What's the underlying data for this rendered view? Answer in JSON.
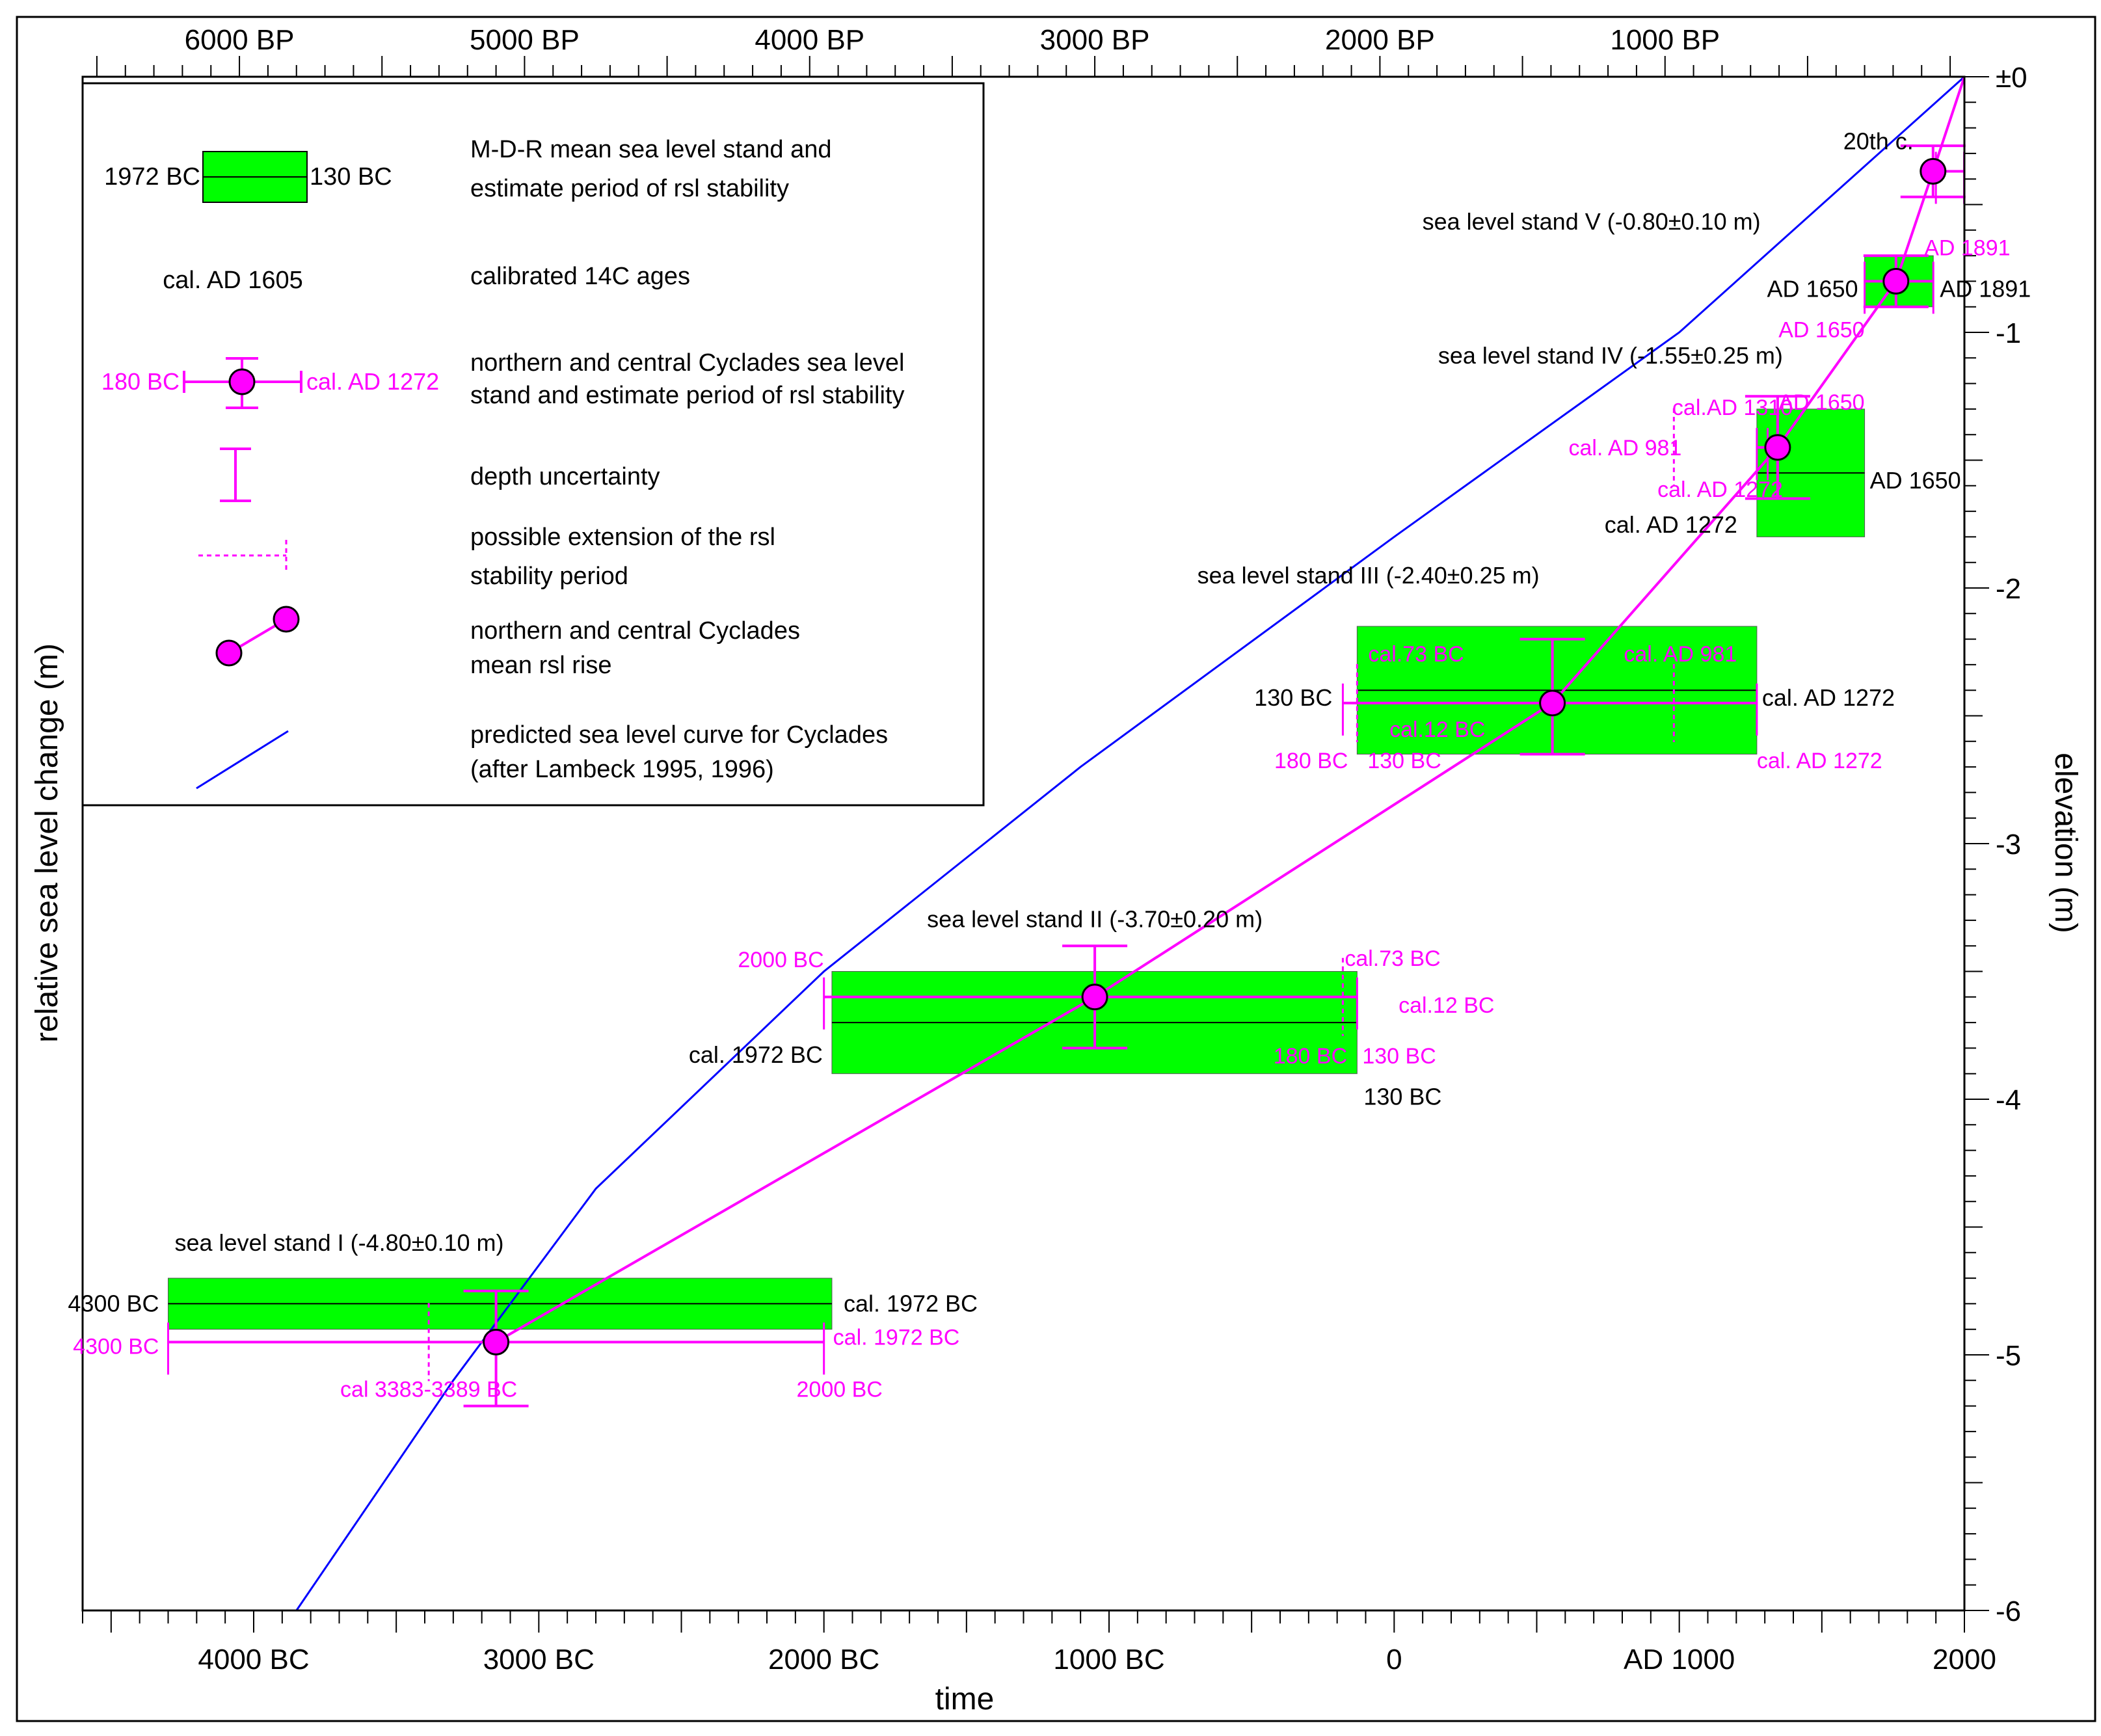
{
  "chart_data": {
    "type": "line",
    "xlabel": "time",
    "ylabel": "relative sea level change (m)",
    "ylabel_right": "elevation (m)",
    "xlim": [
      -4600,
      2000
    ],
    "ylim": [
      -6,
      0
    ],
    "grid": false,
    "legend_position": "top-left",
    "colors": {
      "stand_fill": "#00ff00",
      "cyclades": "#ff00ff",
      "predicted": "#0000ff",
      "text": "#000000"
    },
    "x_ticks": [
      {
        "value": -4000,
        "label": "4000 BC"
      },
      {
        "value": -3000,
        "label": "3000 BC"
      },
      {
        "value": -2000,
        "label": "2000 BC"
      },
      {
        "value": -1000,
        "label": "1000 BC"
      },
      {
        "value": 0,
        "label": "0"
      },
      {
        "value": 1000,
        "label": "AD 1000"
      },
      {
        "value": 2000,
        "label": "2000"
      }
    ],
    "top_ticks": [
      {
        "value": -4050,
        "label": "6000 BP"
      },
      {
        "value": -3050,
        "label": "5000 BP"
      },
      {
        "value": -2050,
        "label": "4000 BP"
      },
      {
        "value": -1050,
        "label": "3000 BP"
      },
      {
        "value": -50,
        "label": "2000 BP"
      },
      {
        "value": 950,
        "label": "1000 BP"
      }
    ],
    "y_ticks": [
      {
        "value": 0,
        "label": "±0"
      },
      {
        "value": -1,
        "label": "-1"
      },
      {
        "value": -2,
        "label": "-2"
      },
      {
        "value": -3,
        "label": "-3"
      },
      {
        "value": -4,
        "label": "-4"
      },
      {
        "value": -5,
        "label": "-5"
      },
      {
        "value": -6,
        "label": "-6"
      }
    ],
    "sea_level_stands": [
      {
        "label": "sea level stand I (-4.80±0.10 m)",
        "x_start": -4300,
        "x_end": -1972,
        "level": -4.8,
        "half_range": 0.1
      },
      {
        "label": "sea level stand II (-3.70±0.20 m)",
        "x_start": -1972,
        "x_end": -130,
        "level": -3.7,
        "half_range": 0.2
      },
      {
        "label": "sea level stand III (-2.40±0.25 m)",
        "x_start": -130,
        "x_end": 1272,
        "level": -2.4,
        "half_range": 0.25
      },
      {
        "label": "sea level stand IV (-1.55±0.25 m)",
        "x_start": 1272,
        "x_end": 1650,
        "level": -1.55,
        "half_range": 0.25
      },
      {
        "label": "sea level stand V (-0.80±0.10 m)",
        "x_start": 1650,
        "x_end": 1891,
        "level": -0.8,
        "half_range": 0.1
      }
    ],
    "series": [
      {
        "name": "northern and central Cyclades mean rsl rise",
        "points": [
          {
            "x": -3150,
            "y": -4.95,
            "y_err_low": -5.2,
            "y_err_high": -4.75,
            "x_start": -4300,
            "x_end": -2000,
            "ext_start": -3386
          },
          {
            "x": -1050,
            "y": -3.6,
            "y_err_low": -3.8,
            "y_err_high": -3.4,
            "x_start": -2000,
            "x_end": -130,
            "ext_end": -180
          },
          {
            "x": 555,
            "y": -2.45,
            "y_err_low": -2.65,
            "y_err_high": -2.2,
            "x_start": -180,
            "x_end": 1272,
            "ext_start": -130,
            "ext_end": 981
          },
          {
            "x": 1345,
            "y": -1.45,
            "y_err_low": -1.65,
            "y_err_high": -1.25,
            "x_start": 1272,
            "x_end": 1310,
            "ext_start": 981
          },
          {
            "x": 1760,
            "y": -0.8,
            "y_err_low": -0.9,
            "y_err_high": -0.7,
            "x_start": 1650,
            "x_end": 1891
          },
          {
            "x": 1890,
            "y": -0.37,
            "y_err_low": -0.47,
            "y_err_high": -0.27,
            "x_start": 1900,
            "x_end": 1999
          }
        ]
      },
      {
        "name": "predicted sea level curve for Cyclades",
        "points": [
          {
            "x": -3850,
            "y": -6.0
          },
          {
            "x": -3300,
            "y": -5.1
          },
          {
            "x": -2800,
            "y": -4.35
          },
          {
            "x": -2000,
            "y": -3.5
          },
          {
            "x": -1100,
            "y": -2.7
          },
          {
            "x": 0,
            "y": -1.8
          },
          {
            "x": 1000,
            "y": -1.0
          },
          {
            "x": 2000,
            "y": 0.0
          }
        ]
      }
    ],
    "legend": {
      "stand_box_left": "1972 BC",
      "stand_box_right": "130 BC",
      "stand_text_1": "M-D-R mean sea level stand and",
      "stand_text_2": "estimate period of rsl stability",
      "cal_example": "cal. AD 1605",
      "cal_text": "calibrated 14C ages",
      "cyclades_left": "180 BC",
      "cyclades_right": "cal. AD 1272",
      "cyclades_text_1": "northern and central Cyclades sea level",
      "cyclades_text_2": "stand and estimate period of rsl stability",
      "depth_text": "depth uncertainty",
      "extension_text_1": "possible extension of the rsl",
      "extension_text_2": "stability period",
      "rise_text_1": "northern and central Cyclades",
      "rise_text_2": "mean rsl rise",
      "predicted_text_1": "predicted sea level curve for Cyclades",
      "predicted_text_2": "(after Lambeck 1995, 1996)"
    },
    "annotations": [
      {
        "text": "4300 BC",
        "x": -4300,
        "y": -4.8,
        "color": "black",
        "anchor": "end",
        "dx": -14,
        "dy": 0
      },
      {
        "text": "cal. 1972 BC",
        "x": -1972,
        "y": -4.8,
        "color": "black",
        "anchor": "start",
        "dx": 18,
        "dy": 0
      },
      {
        "text": "4300 BC",
        "x": -4300,
        "y": -4.95,
        "color": "magenta",
        "anchor": "end",
        "dx": -14,
        "dy": 6
      },
      {
        "text": "cal. 1972 BC",
        "x": -2000,
        "y": -4.95,
        "color": "magenta",
        "anchor": "start",
        "dx": 14,
        "dy": -8
      },
      {
        "text": "cal 3383-3389 BC",
        "x": -3386,
        "y": -4.95,
        "color": "magenta",
        "anchor": "middle",
        "dx": 0,
        "dy": 72
      },
      {
        "text": "2000 BC",
        "x": -2000,
        "y": -4.95,
        "color": "magenta",
        "anchor": "middle",
        "dx": 24,
        "dy": 72
      },
      {
        "text": "2000 BC",
        "x": -2000,
        "y": -3.6,
        "color": "magenta",
        "anchor": "end",
        "dx": 0,
        "dy": -58
      },
      {
        "text": "cal. 1972 BC",
        "x": -1972,
        "y": -3.7,
        "color": "black",
        "anchor": "end",
        "dx": -14,
        "dy": 50
      },
      {
        "text": "cal.73 BC",
        "x": -73,
        "y": -3.6,
        "color": "magenta",
        "anchor": "start",
        "dx": -44,
        "dy": -60
      },
      {
        "text": "cal.12 BC",
        "x": -12,
        "y": -3.6,
        "color": "magenta",
        "anchor": "start",
        "dx": 12,
        "dy": 12
      },
      {
        "text": "180 BC",
        "x": -180,
        "y": -3.6,
        "color": "magenta",
        "anchor": "middle",
        "dx": -50,
        "dy": 90
      },
      {
        "text": "130 BC",
        "x": -130,
        "y": -3.6,
        "color": "magenta",
        "anchor": "start",
        "dx": 8,
        "dy": 90
      },
      {
        "text": "130 BC",
        "x": -130,
        "y": -3.9,
        "color": "black",
        "anchor": "start",
        "dx": 10,
        "dy": 36
      },
      {
        "text": "130 BC",
        "x": -130,
        "y": -2.4,
        "color": "black",
        "anchor": "end",
        "dx": -38,
        "dy": 12
      },
      {
        "text": "cal. AD 1272",
        "x": 1272,
        "y": -2.4,
        "color": "black",
        "anchor": "start",
        "dx": 8,
        "dy": 12
      },
      {
        "text": "cal.73 BC",
        "x": -73,
        "y": -2.4,
        "color": "magenta",
        "anchor": "start",
        "dx": -8,
        "dy": -56
      },
      {
        "text": "cal. AD 981",
        "x": 981,
        "y": -2.4,
        "color": "magenta",
        "anchor": "middle",
        "dx": 10,
        "dy": -56
      },
      {
        "text": "cal.12 BC",
        "x": -12,
        "y": -2.4,
        "color": "magenta",
        "anchor": "start",
        "dx": -2,
        "dy": 60
      },
      {
        "text": "180 BC",
        "x": -180,
        "y": -2.4,
        "color": "magenta",
        "anchor": "end",
        "dx": 8,
        "dy": 108
      },
      {
        "text": "130 BC",
        "x": -130,
        "y": -2.4,
        "color": "magenta",
        "anchor": "start",
        "dx": 16,
        "dy": 108
      },
      {
        "text": "cal. AD 1272",
        "x": 1272,
        "y": -2.4,
        "color": "magenta",
        "anchor": "start",
        "dx": 0,
        "dy": 108
      },
      {
        "text": "cal.AD 1310",
        "x": 1310,
        "y": -1.45,
        "color": "magenta",
        "anchor": "middle",
        "dx": -54,
        "dy": -62
      },
      {
        "text": "AD 1650",
        "x": 1650,
        "y": -1.45,
        "color": "magenta",
        "anchor": "end",
        "dx": 0,
        "dy": -70
      },
      {
        "text": "cal. AD 981",
        "x": 981,
        "y": -1.45,
        "color": "magenta",
        "anchor": "end",
        "dx": 12,
        "dy": 0
      },
      {
        "text": "AD 1650",
        "x": 1650,
        "y": -1.55,
        "color": "black",
        "anchor": "start",
        "dx": 8,
        "dy": 12
      },
      {
        "text": "cal. AD 1272",
        "x": 1272,
        "y": -1.45,
        "color": "magenta",
        "anchor": "end",
        "dx": 40,
        "dy": 64
      },
      {
        "text": "cal. AD 1272",
        "x": 1272,
        "y": -1.55,
        "color": "black",
        "anchor": "end",
        "dx": -30,
        "dy": 80
      },
      {
        "text": "AD 1650",
        "x": 1650,
        "y": -0.8,
        "color": "black",
        "anchor": "end",
        "dx": -10,
        "dy": 12
      },
      {
        "text": "AD 1891",
        "x": 1891,
        "y": -0.8,
        "color": "black",
        "anchor": "start",
        "dx": 10,
        "dy": 12
      },
      {
        "text": "AD 1891",
        "x": 1891,
        "y": -0.8,
        "color": "magenta",
        "anchor": "start",
        "dx": -14,
        "dy": -52
      },
      {
        "text": "AD 1650",
        "x": 1650,
        "y": -0.8,
        "color": "magenta",
        "anchor": "end",
        "dx": 0,
        "dy": 74
      },
      {
        "text": "20th c.",
        "x": 1890,
        "y": -0.37,
        "color": "black",
        "anchor": "end",
        "dx": -30,
        "dy": -46
      }
    ]
  }
}
